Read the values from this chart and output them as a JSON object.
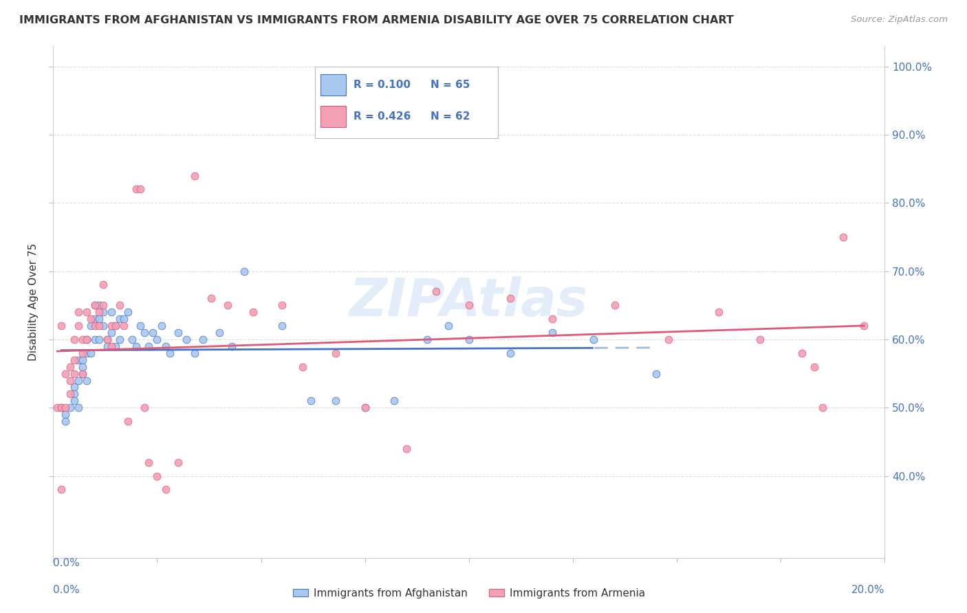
{
  "title": "IMMIGRANTS FROM AFGHANISTAN VS IMMIGRANTS FROM ARMENIA DISABILITY AGE OVER 75 CORRELATION CHART",
  "source": "Source: ZipAtlas.com",
  "ylabel": "Disability Age Over 75",
  "legend_label1": "Immigrants from Afghanistan",
  "legend_label2": "Immigrants from Armenia",
  "r1": "0.100",
  "n1": "65",
  "r2": "0.426",
  "n2": "62",
  "color_af": "#a8c8f0",
  "color_ar": "#f4a0b4",
  "line_af": "#4472c4",
  "line_ar": "#e05878",
  "line_af_dash": "#a0b8e0",
  "xlim": [
    0.0,
    0.2
  ],
  "ylim": [
    0.28,
    1.03
  ],
  "yticks": [
    0.4,
    0.5,
    0.6,
    0.7,
    0.8,
    0.9,
    1.0
  ],
  "ytick_labels": [
    "40.0%",
    "50.0%",
    "60.0%",
    "70.0%",
    "80.0%",
    "90.0%",
    "100.0%"
  ],
  "xtick_label_left": "0.0%",
  "xtick_label_right": "20.0%",
  "background_color": "#ffffff",
  "grid_color": "#dddddd",
  "text_color": "#333333",
  "blue_color": "#4472c4",
  "af_x": [
    0.002,
    0.003,
    0.003,
    0.004,
    0.005,
    0.005,
    0.005,
    0.006,
    0.006,
    0.006,
    0.007,
    0.007,
    0.007,
    0.008,
    0.008,
    0.008,
    0.009,
    0.009,
    0.01,
    0.01,
    0.01,
    0.011,
    0.011,
    0.011,
    0.012,
    0.012,
    0.013,
    0.013,
    0.014,
    0.014,
    0.015,
    0.015,
    0.016,
    0.016,
    0.017,
    0.018,
    0.019,
    0.02,
    0.021,
    0.022,
    0.023,
    0.024,
    0.025,
    0.026,
    0.027,
    0.028,
    0.03,
    0.032,
    0.034,
    0.036,
    0.04,
    0.043,
    0.046,
    0.055,
    0.062,
    0.068,
    0.075,
    0.082,
    0.09,
    0.095,
    0.1,
    0.11,
    0.12,
    0.13,
    0.145
  ],
  "af_y": [
    0.5,
    0.49,
    0.48,
    0.5,
    0.53,
    0.52,
    0.51,
    0.57,
    0.54,
    0.5,
    0.57,
    0.56,
    0.55,
    0.6,
    0.58,
    0.54,
    0.62,
    0.58,
    0.65,
    0.63,
    0.6,
    0.65,
    0.63,
    0.6,
    0.64,
    0.62,
    0.6,
    0.59,
    0.64,
    0.61,
    0.62,
    0.59,
    0.63,
    0.6,
    0.63,
    0.64,
    0.6,
    0.59,
    0.62,
    0.61,
    0.59,
    0.61,
    0.6,
    0.62,
    0.59,
    0.58,
    0.61,
    0.6,
    0.58,
    0.6,
    0.61,
    0.59,
    0.7,
    0.62,
    0.51,
    0.51,
    0.5,
    0.51,
    0.6,
    0.62,
    0.6,
    0.58,
    0.61,
    0.6,
    0.55
  ],
  "ar_x": [
    0.001,
    0.002,
    0.002,
    0.003,
    0.003,
    0.004,
    0.004,
    0.004,
    0.005,
    0.005,
    0.005,
    0.006,
    0.006,
    0.007,
    0.007,
    0.007,
    0.008,
    0.008,
    0.009,
    0.01,
    0.01,
    0.011,
    0.011,
    0.012,
    0.013,
    0.014,
    0.014,
    0.015,
    0.016,
    0.017,
    0.018,
    0.02,
    0.021,
    0.022,
    0.023,
    0.025,
    0.027,
    0.03,
    0.034,
    0.038,
    0.042,
    0.048,
    0.055,
    0.06,
    0.068,
    0.075,
    0.085,
    0.092,
    0.1,
    0.11,
    0.12,
    0.135,
    0.148,
    0.16,
    0.17,
    0.18,
    0.183,
    0.185,
    0.19,
    0.195,
    0.002,
    0.012
  ],
  "ar_y": [
    0.5,
    0.62,
    0.5,
    0.55,
    0.5,
    0.56,
    0.54,
    0.52,
    0.6,
    0.57,
    0.55,
    0.64,
    0.62,
    0.6,
    0.58,
    0.55,
    0.64,
    0.6,
    0.63,
    0.65,
    0.62,
    0.64,
    0.62,
    0.65,
    0.6,
    0.62,
    0.59,
    0.62,
    0.65,
    0.62,
    0.48,
    0.82,
    0.82,
    0.5,
    0.42,
    0.4,
    0.38,
    0.42,
    0.84,
    0.66,
    0.65,
    0.64,
    0.65,
    0.56,
    0.58,
    0.5,
    0.44,
    0.67,
    0.65,
    0.66,
    0.63,
    0.65,
    0.6,
    0.64,
    0.6,
    0.58,
    0.56,
    0.5,
    0.75,
    0.62,
    0.38,
    0.68
  ],
  "watermark": "ZIPAtlas"
}
